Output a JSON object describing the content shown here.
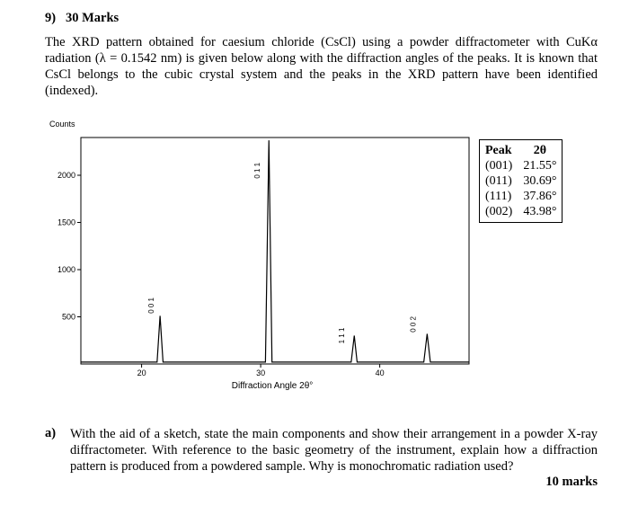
{
  "question": {
    "number": "9)",
    "marks": "30 Marks",
    "intro": "The XRD pattern obtained for caesium chloride (CsCl) using a powder diffractometer with CuKα radiation (λ = 0.1542 nm) is given below along with the diffraction angles of the peaks.  It is known that CsCl belongs to the cubic crystal system and the peaks in the XRD pattern have been identified (indexed)."
  },
  "chart": {
    "type": "line",
    "ylabel": "Counts",
    "xlabel": "Diffraction Angle 2θ°",
    "xlim": [
      14.9,
      47.5
    ],
    "ylim": [
      0,
      2400
    ],
    "xticks": [
      20,
      30,
      40
    ],
    "yticks": [
      500,
      1000,
      1500,
      2000
    ],
    "color": "#000000",
    "x": [
      14.9,
      21.3,
      21.55,
      21.8,
      30.4,
      30.69,
      30.95,
      37.6,
      37.86,
      38.1,
      43.7,
      43.98,
      44.25,
      47.5
    ],
    "values": [
      20,
      20,
      510,
      20,
      20,
      2370,
      20,
      20,
      300,
      20,
      20,
      320,
      20,
      20
    ],
    "annotations": [
      {
        "text": "0 0 1",
        "x": 21.0,
        "y": 620
      },
      {
        "text": "0 1 1",
        "x": 29.9,
        "y": 2050
      },
      {
        "text": "1 1 1",
        "x": 37.0,
        "y": 300
      },
      {
        "text": "0 0 2",
        "x": 43.0,
        "y": 420
      }
    ]
  },
  "table": {
    "header": [
      "Peak",
      "2θ"
    ],
    "rows": [
      [
        "(001)",
        "21.55°"
      ],
      [
        "(011)",
        "30.69°"
      ],
      [
        "(111)",
        "37.86°"
      ],
      [
        "(002)",
        "43.98°"
      ]
    ]
  },
  "part_a": {
    "label": "a)",
    "text": "With the aid of a sketch, state the main components and show their arrangement in a powder X-ray diffractometer.  With reference to the basic geometry of the instrument, explain how a diffraction pattern is produced from a powdered sample.  Why is monochromatic radiation used?",
    "marks": "10 marks"
  }
}
